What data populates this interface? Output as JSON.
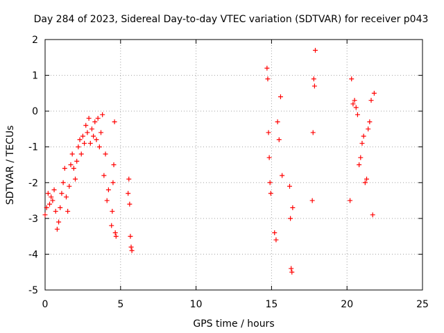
{
  "chart_data": {
    "type": "scatter",
    "title": "Day 284 of 2023, Sidereal Day-to-day VTEC variation (SDTVAR) for receiver p043",
    "xlabel": "GPS time / hours",
    "ylabel": "SDTVAR / TECUs",
    "xlim": [
      0,
      25
    ],
    "ylim": [
      -5,
      2
    ],
    "xticks": [
      0,
      5,
      10,
      15,
      20,
      25
    ],
    "yticks": [
      -5,
      -4,
      -3,
      -2,
      -1,
      0,
      1,
      2
    ],
    "grid": true,
    "marker": "+",
    "color": "#ff0000",
    "series": [
      {
        "name": "SDTVAR",
        "x": [
          0.0,
          0.1,
          0.2,
          0.3,
          0.4,
          0.5,
          0.6,
          0.7,
          0.8,
          0.9,
          1.0,
          1.1,
          1.2,
          1.3,
          1.4,
          1.5,
          1.6,
          1.7,
          1.8,
          1.9,
          2.0,
          2.1,
          2.2,
          2.3,
          2.4,
          2.5,
          2.6,
          2.7,
          2.8,
          2.9,
          3.0,
          3.1,
          3.2,
          3.3,
          3.4,
          3.5,
          3.6,
          3.7,
          3.8,
          3.9,
          4.0,
          4.1,
          4.2,
          4.4,
          4.45,
          4.5,
          4.55,
          4.6,
          4.65,
          4.7,
          5.5,
          5.55,
          5.6,
          5.65,
          5.7,
          5.75,
          14.7,
          14.75,
          14.8,
          14.85,
          14.9,
          14.95,
          15.2,
          15.3,
          15.4,
          15.5,
          15.6,
          15.7,
          16.2,
          16.25,
          16.3,
          16.35,
          16.4,
          17.7,
          17.75,
          17.8,
          17.85,
          17.9,
          20.2,
          20.3,
          20.4,
          20.5,
          20.6,
          20.7,
          20.8,
          20.9,
          21.0,
          21.1,
          21.2,
          21.3,
          21.4,
          21.5,
          21.6,
          21.7,
          21.8
        ],
        "y": [
          -2.9,
          -2.7,
          -2.3,
          -2.6,
          -2.4,
          -2.5,
          -2.2,
          -2.8,
          -3.3,
          -3.1,
          -2.7,
          -2.3,
          -2.0,
          -1.6,
          -2.4,
          -2.8,
          -2.1,
          -1.5,
          -1.2,
          -1.6,
          -1.9,
          -1.4,
          -1.0,
          -0.8,
          -1.2,
          -0.7,
          -0.9,
          -0.4,
          -0.6,
          -0.2,
          -0.9,
          -0.5,
          -0.7,
          -0.3,
          -0.8,
          -0.2,
          -1.0,
          -0.6,
          -0.1,
          -1.8,
          -1.2,
          -2.5,
          -2.2,
          -3.2,
          -2.8,
          -2.0,
          -1.5,
          -0.3,
          -3.4,
          -3.5,
          -2.3,
          -1.9,
          -2.6,
          -3.5,
          -3.8,
          -3.9,
          1.2,
          0.9,
          -0.6,
          -1.3,
          -2.0,
          -2.3,
          -3.4,
          -3.6,
          -0.3,
          -0.8,
          0.4,
          -1.8,
          -2.1,
          -3.0,
          -4.4,
          -4.5,
          -2.7,
          -2.5,
          -0.6,
          0.9,
          0.7,
          1.7,
          -2.5,
          0.9,
          0.2,
          0.3,
          0.1,
          -0.1,
          -1.5,
          -1.3,
          -0.9,
          -0.7,
          -2.0,
          -1.9,
          -0.5,
          -0.3,
          0.3,
          -2.9,
          0.5
        ]
      }
    ]
  }
}
